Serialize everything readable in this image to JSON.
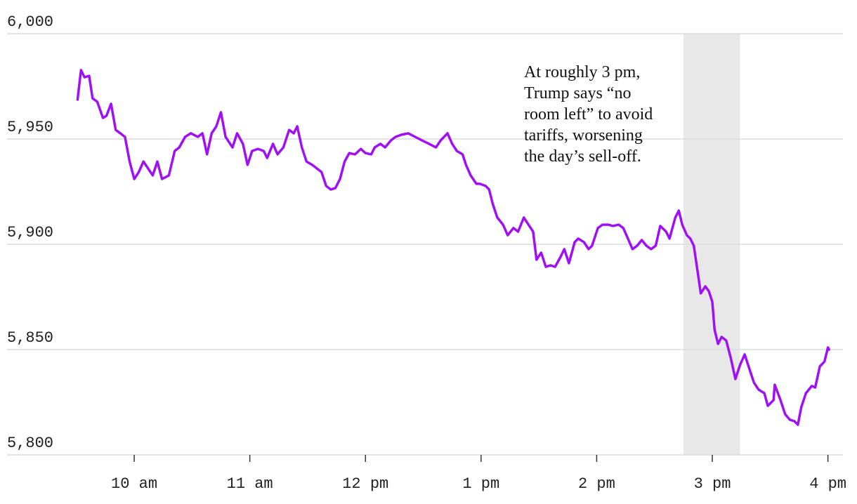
{
  "chart_data": {
    "type": "line",
    "annotation": [
      "At roughly 3 pm,",
      "Trump says “no",
      "room left” to avoid",
      "tariffs, worsening",
      "the day’s sell-off."
    ],
    "highlight": {
      "x": [
        14.75,
        15.24
      ],
      "color": "#e8e8e8"
    },
    "xlim": [
      8.9,
      16.13
    ],
    "ylim": [
      5800,
      6000
    ],
    "grid": true,
    "xticks": [
      {
        "value": 10,
        "label": "10 am"
      },
      {
        "value": 11,
        "label": "11 am"
      },
      {
        "value": 12,
        "label": "12 pm"
      },
      {
        "value": 13,
        "label": "1 pm"
      },
      {
        "value": 14,
        "label": "2 pm"
      },
      {
        "value": 15,
        "label": "3 pm"
      },
      {
        "value": 16,
        "label": "4 pm"
      }
    ],
    "yticks": [
      {
        "value": 5800,
        "label": "5,800"
      },
      {
        "value": 5850,
        "label": "5,850"
      },
      {
        "value": 5900,
        "label": "5,900"
      },
      {
        "value": 5950,
        "label": "5,950"
      },
      {
        "value": 6000,
        "label": "6,000"
      }
    ],
    "x": [
      9.51,
      9.54,
      9.57,
      9.61,
      9.64,
      9.68,
      9.73,
      9.76,
      9.8,
      9.84,
      9.88,
      9.92,
      9.96,
      10.0,
      10.04,
      10.08,
      10.12,
      10.16,
      10.2,
      10.24,
      10.3,
      10.35,
      10.39,
      10.44,
      10.49,
      10.55,
      10.59,
      10.63,
      10.67,
      10.71,
      10.75,
      10.79,
      10.85,
      10.89,
      10.94,
      10.98,
      11.02,
      11.07,
      11.12,
      11.15,
      11.2,
      11.24,
      11.29,
      11.34,
      11.38,
      11.41,
      11.45,
      11.49,
      11.54,
      11.58,
      11.62,
      11.66,
      11.7,
      11.74,
      11.78,
      11.82,
      11.86,
      11.91,
      11.96,
      12.0,
      12.05,
      12.08,
      12.13,
      12.17,
      12.22,
      12.26,
      12.31,
      12.37,
      12.43,
      12.49,
      12.55,
      12.61,
      12.65,
      12.71,
      12.75,
      12.79,
      12.84,
      12.87,
      12.91,
      12.96,
      12.99,
      13.04,
      13.07,
      13.1,
      13.14,
      13.19,
      13.23,
      13.28,
      13.32,
      13.37,
      13.41,
      13.45,
      13.48,
      13.52,
      13.56,
      13.6,
      13.64,
      13.69,
      13.72,
      13.76,
      13.81,
      13.84,
      13.89,
      13.93,
      13.96,
      14.01,
      14.05,
      14.1,
      14.14,
      14.19,
      14.23,
      14.27,
      14.31,
      14.35,
      14.39,
      14.43,
      14.47,
      14.51,
      14.55,
      14.6,
      14.63,
      14.68,
      14.71,
      14.74,
      14.78,
      14.81,
      14.84,
      14.88,
      14.9,
      14.94,
      14.97,
      15.0,
      15.02,
      15.05,
      15.08,
      15.12,
      15.16,
      15.2,
      15.24,
      15.28,
      15.33,
      15.36,
      15.4,
      15.45,
      15.48,
      15.53,
      15.54,
      15.59,
      15.63,
      15.67,
      15.71,
      15.74,
      15.77,
      15.81,
      15.86,
      15.89,
      15.93,
      15.97,
      16.0,
      16.01
    ],
    "series": [
      {
        "color": "#a010f5",
        "values": [
          5968.7,
          5982.7,
          5979.3,
          5980,
          5969.3,
          5967.7,
          5960,
          5961,
          5966.7,
          5954.3,
          5952.7,
          5951,
          5939.3,
          5931,
          5934.3,
          5939.3,
          5936,
          5932.7,
          5939.3,
          5931,
          5932.7,
          5944.3,
          5946,
          5951,
          5952.7,
          5951,
          5952.7,
          5942.7,
          5952.7,
          5956,
          5962.7,
          5951,
          5946,
          5952.7,
          5947.7,
          5937.7,
          5944.3,
          5945.3,
          5944.3,
          5941,
          5947.7,
          5942.7,
          5946,
          5954.3,
          5952.7,
          5956,
          5946,
          5939.3,
          5937.7,
          5936,
          5934.3,
          5927.7,
          5926,
          5926.7,
          5931,
          5939.3,
          5943.3,
          5942.7,
          5945.3,
          5943.3,
          5942.7,
          5946,
          5947.7,
          5946,
          5949.3,
          5951,
          5952,
          5952.7,
          5951,
          5949.3,
          5947.7,
          5946,
          5949.3,
          5952.7,
          5947.7,
          5944.3,
          5942.7,
          5937.7,
          5932.7,
          5928.7,
          5928.7,
          5927.7,
          5926,
          5919.3,
          5912.7,
          5909.3,
          5904.3,
          5907.7,
          5906,
          5912.7,
          5909.3,
          5906,
          5892.7,
          5896,
          5889.3,
          5890,
          5889.3,
          5894.3,
          5897.7,
          5891,
          5901,
          5902.7,
          5901,
          5897.7,
          5899.3,
          5907.7,
          5909.3,
          5909.3,
          5908.7,
          5909.3,
          5907.7,
          5902.7,
          5897.7,
          5899.3,
          5902,
          5899.3,
          5897.7,
          5899.3,
          5908.7,
          5906,
          5902.7,
          5912.7,
          5916,
          5909.3,
          5904.3,
          5902.7,
          5899.3,
          5884.3,
          5876.7,
          5880,
          5877.7,
          5872.7,
          5859.3,
          5852.7,
          5856,
          5854.3,
          5846,
          5836,
          5842.7,
          5847.7,
          5839.3,
          5834.3,
          5831,
          5829.3,
          5823.3,
          5826,
          5833.3,
          5826,
          5819.3,
          5816.7,
          5816,
          5814.3,
          5822.7,
          5829.3,
          5832.7,
          5832,
          5842,
          5844.3,
          5851,
          5850
        ]
      }
    ]
  }
}
